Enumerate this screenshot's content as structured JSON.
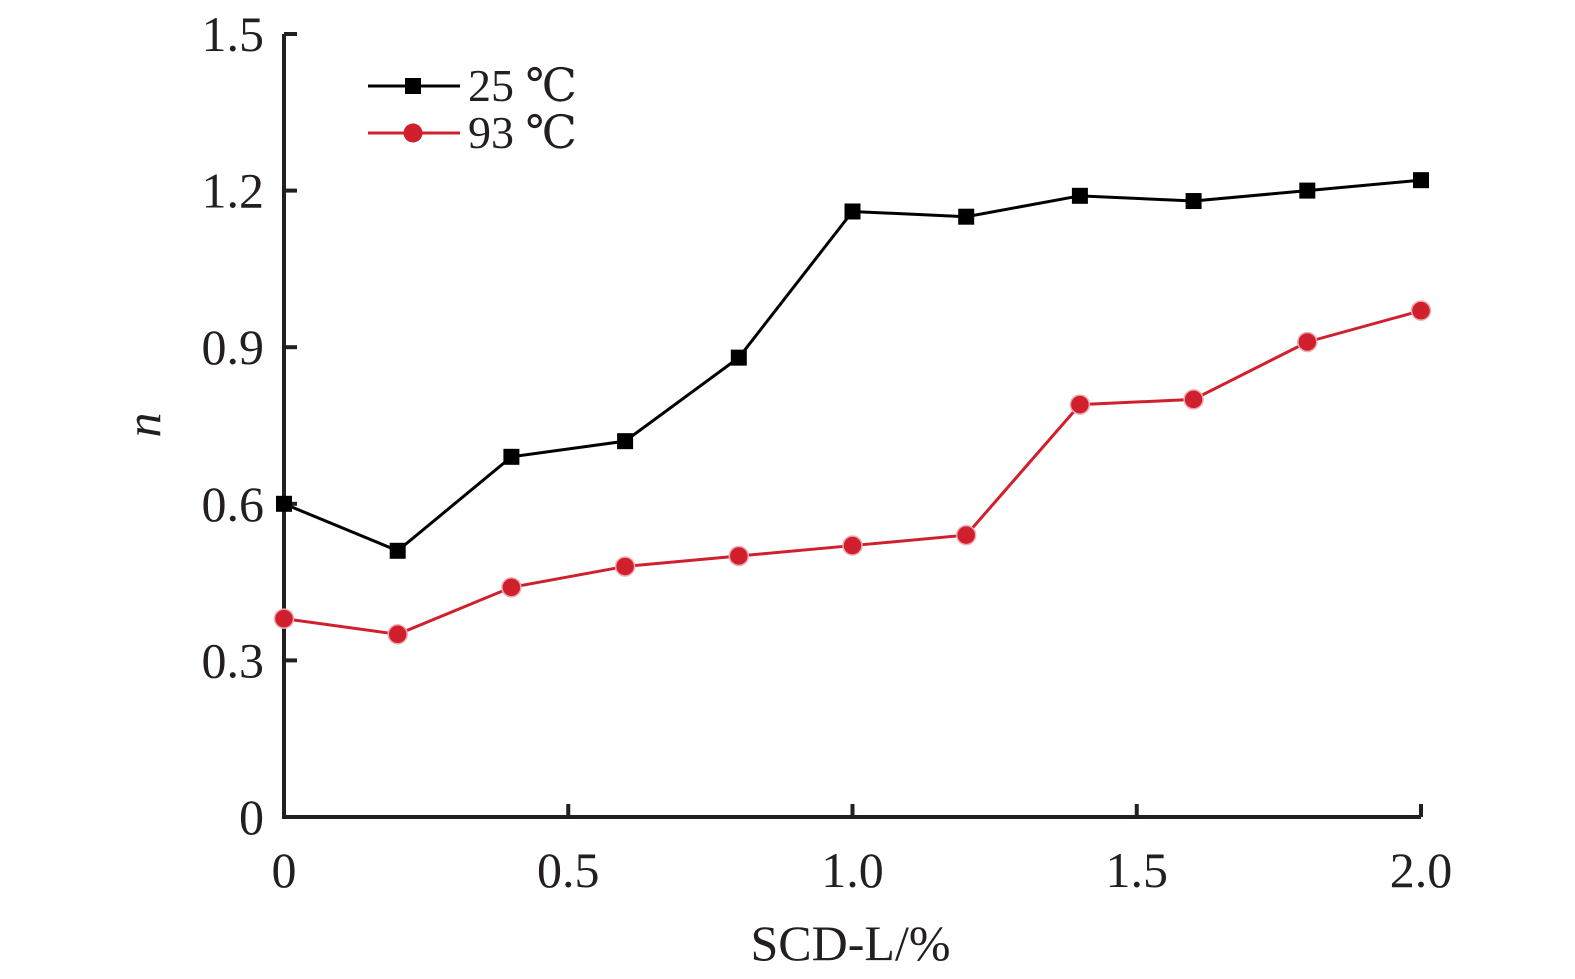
{
  "chart_data": {
    "type": "line",
    "xlabel": "SCD-L/%",
    "ylabel": "n",
    "xlim": [
      0,
      2.0
    ],
    "ylim": [
      0,
      1.5
    ],
    "x_ticks": [
      "0",
      "0.5",
      "1.0",
      "1.5",
      "2.0"
    ],
    "y_ticks": [
      "0",
      "0.3",
      "0.6",
      "0.9",
      "1.2",
      "1.5"
    ],
    "grid": false,
    "legend_position": "top-left",
    "x": [
      0,
      0.2,
      0.4,
      0.6,
      0.8,
      1.0,
      1.2,
      1.4,
      1.6,
      1.8,
      2.0
    ],
    "series": [
      {
        "name": "25 ℃",
        "marker": "square",
        "color": "#000000",
        "values": [
          0.6,
          0.51,
          0.69,
          0.72,
          0.88,
          1.16,
          1.15,
          1.19,
          1.18,
          1.2,
          1.22
        ]
      },
      {
        "name": "93 ℃",
        "marker": "circle",
        "color": "#d0202e",
        "values": [
          0.38,
          0.35,
          0.44,
          0.48,
          0.5,
          0.52,
          0.54,
          0.79,
          0.8,
          0.91,
          0.97
        ]
      }
    ]
  }
}
